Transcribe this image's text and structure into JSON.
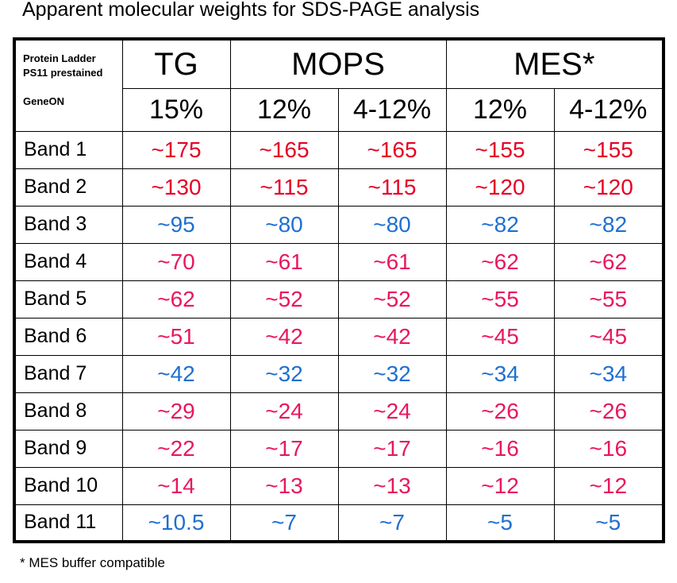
{
  "title": "Apparent molecular weights for SDS-PAGE analysis",
  "header": {
    "corner": {
      "line1": "Protein Ladder",
      "line2": "PS11 prestained",
      "brand": "GeneON"
    },
    "buffers": [
      "TG",
      "MOPS",
      "MES*"
    ],
    "concentrations": [
      "15%",
      "12%",
      "4-12%",
      "12%",
      "4-12%"
    ]
  },
  "rows": [
    {
      "label": "Band  1",
      "values": [
        "~175",
        "~165",
        "~165",
        "~155",
        "~155"
      ],
      "color": "red"
    },
    {
      "label": "Band  2",
      "values": [
        "~130",
        "~115",
        "~115",
        "~120",
        "~120"
      ],
      "color": "red"
    },
    {
      "label": "Band  3",
      "values": [
        "~95",
        "~80",
        "~80",
        "~82",
        "~82"
      ],
      "color": "blue"
    },
    {
      "label": "Band  4",
      "values": [
        "~70",
        "~61",
        "~61",
        "~62",
        "~62"
      ],
      "color": "pink"
    },
    {
      "label": "Band  5",
      "values": [
        "~62",
        "~52",
        "~52",
        "~55",
        "~55"
      ],
      "color": "pink"
    },
    {
      "label": "Band  6",
      "values": [
        "~51",
        "~42",
        "~42",
        "~45",
        "~45"
      ],
      "color": "pink"
    },
    {
      "label": "Band  7",
      "values": [
        "~42",
        "~32",
        "~32",
        "~34",
        "~34"
      ],
      "color": "blue"
    },
    {
      "label": "Band  8",
      "values": [
        "~29",
        "~24",
        "~24",
        "~26",
        "~26"
      ],
      "color": "pink"
    },
    {
      "label": "Band  9",
      "values": [
        "~22",
        "~17",
        "~17",
        "~16",
        "~16"
      ],
      "color": "pink"
    },
    {
      "label": "Band 10",
      "values": [
        "~14",
        "~13",
        "~13",
        "~12",
        "~12"
      ],
      "color": "pink"
    },
    {
      "label": "Band 11",
      "values": [
        "~10.5",
        "~7",
        "~7",
        "~5",
        "~5"
      ],
      "color": "blue"
    }
  ],
  "colors": {
    "red": "#e60026",
    "pink": "#e8175d",
    "blue": "#1f6fd1"
  },
  "footnote": "* MES buffer compatible"
}
